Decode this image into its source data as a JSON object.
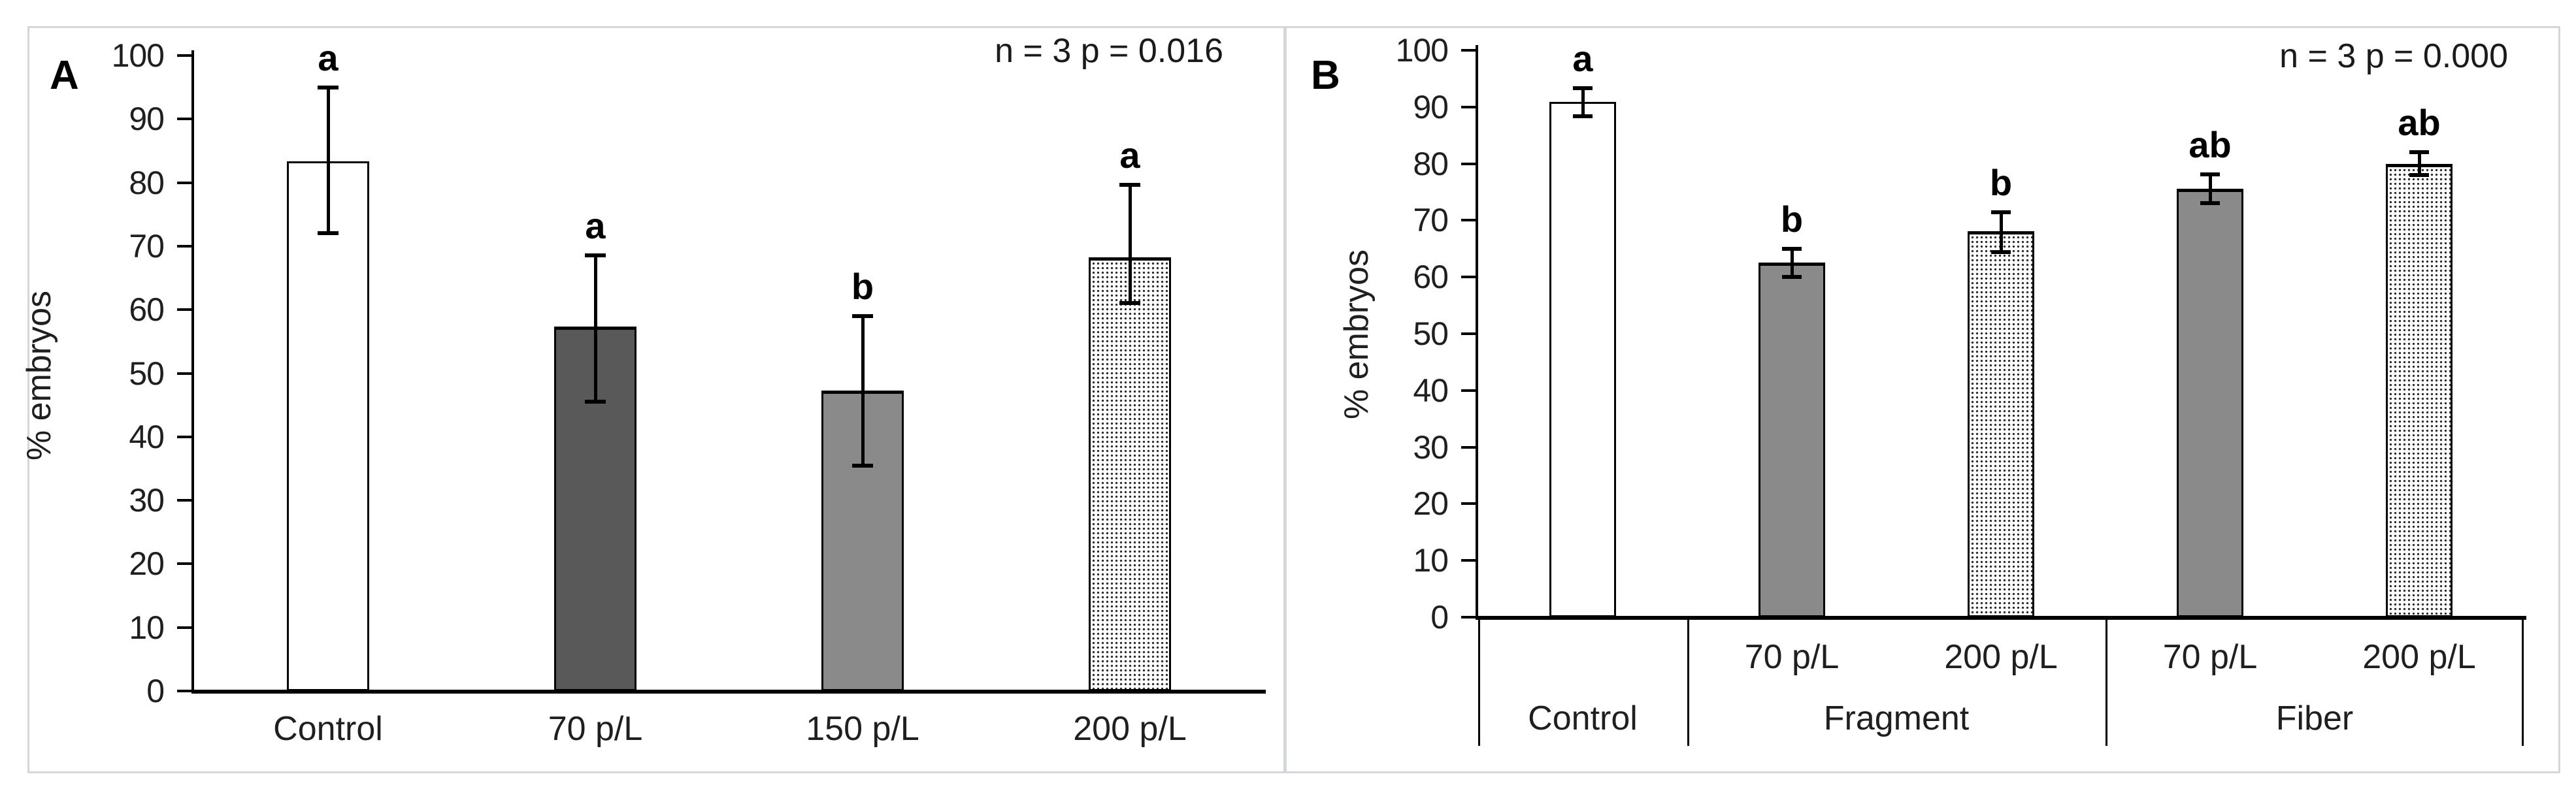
{
  "figure": {
    "description": "Two-panel bar chart figure comparing % embryos across microplastic particle treatments",
    "background": "#ffffff",
    "frame_border_color": "#d3d7db"
  },
  "style": {
    "bar_white": "#ffffff",
    "bar_dark_gray": "#595959",
    "bar_mid_gray": "#8a8a8a",
    "dotted_pattern": "white with small black dots",
    "line_color": "#000000",
    "text_color": "#1a1a1a"
  },
  "chart_data": [
    {
      "type": "bar",
      "panel_label": "A",
      "title": "",
      "annotation": "n = 3 p = 0.016",
      "xlabel": "",
      "ylabel": "% embryos",
      "ylim": [
        0,
        100
      ],
      "ytick_step": 10,
      "yticks": [
        0,
        10,
        20,
        30,
        40,
        50,
        60,
        70,
        80,
        90,
        100
      ],
      "grid": false,
      "legend": "none",
      "categories": [
        "Control",
        "70 p/L",
        "150 p/L",
        "200 p/L"
      ],
      "values": [
        83.3,
        57.3,
        47.3,
        68.2
      ],
      "error_low": [
        72.0,
        45.5,
        35.5,
        61.0
      ],
      "error_high": [
        95.0,
        68.5,
        59.0,
        79.7
      ],
      "sig_letters": [
        "a",
        "a",
        "b",
        "a"
      ],
      "bar_styles": [
        "white",
        "dark-gray",
        "mid-gray",
        "dotted"
      ]
    },
    {
      "type": "bar",
      "panel_label": "B",
      "title": "",
      "annotation": "n = 3 p = 0.000",
      "xlabel": "",
      "ylabel": "% embryos",
      "ylim": [
        0,
        100
      ],
      "ytick_step": 10,
      "yticks": [
        0,
        10,
        20,
        30,
        40,
        50,
        60,
        70,
        80,
        90,
        100
      ],
      "grid": false,
      "legend": "none",
      "categories": [
        "Control",
        "Fragment 70 p/L",
        "Fragment 200 p/L",
        "Fiber 70 p/L",
        "Fiber 200 p/L"
      ],
      "values": [
        90.9,
        62.6,
        68.1,
        75.6,
        80.0
      ],
      "error_low": [
        88.4,
        60.0,
        64.4,
        73.0,
        78.0
      ],
      "error_high": [
        93.3,
        65.0,
        71.4,
        78.1,
        82.0
      ],
      "sig_letters": [
        "a",
        "b",
        "b",
        "ab",
        "ab"
      ],
      "bar_styles": [
        "white",
        "mid-gray",
        "dotted",
        "mid-gray",
        "dotted"
      ],
      "group_axis": {
        "sublabels": [
          "",
          "70 p/L",
          "200 p/L",
          "70 p/L",
          "200 p/L"
        ],
        "groups": [
          {
            "label": "Control",
            "span": 1
          },
          {
            "label": "Fragment",
            "span": 2
          },
          {
            "label": "Fiber",
            "span": 2
          }
        ]
      }
    }
  ]
}
